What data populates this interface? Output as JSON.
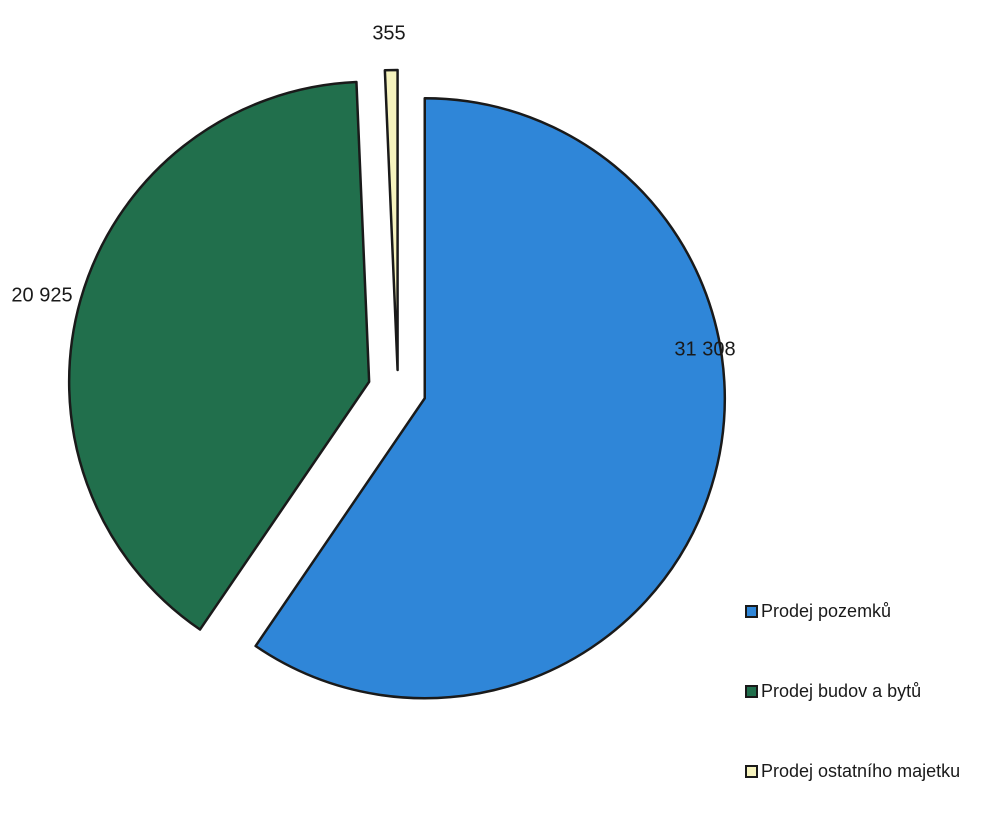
{
  "chart_data": {
    "type": "pie",
    "title": "",
    "categories": [
      "Prodej pozemků",
      "Prodej budov a bytů",
      "Prodej ostatního majetku"
    ],
    "values": [
      31308,
      20925,
      355
    ],
    "data_labels": [
      "31 308",
      "20 925",
      "355"
    ],
    "colors": [
      "#2f86d8",
      "#216f4c",
      "#f6f3be"
    ],
    "exploded": true,
    "legend_position": "bottom-right"
  }
}
